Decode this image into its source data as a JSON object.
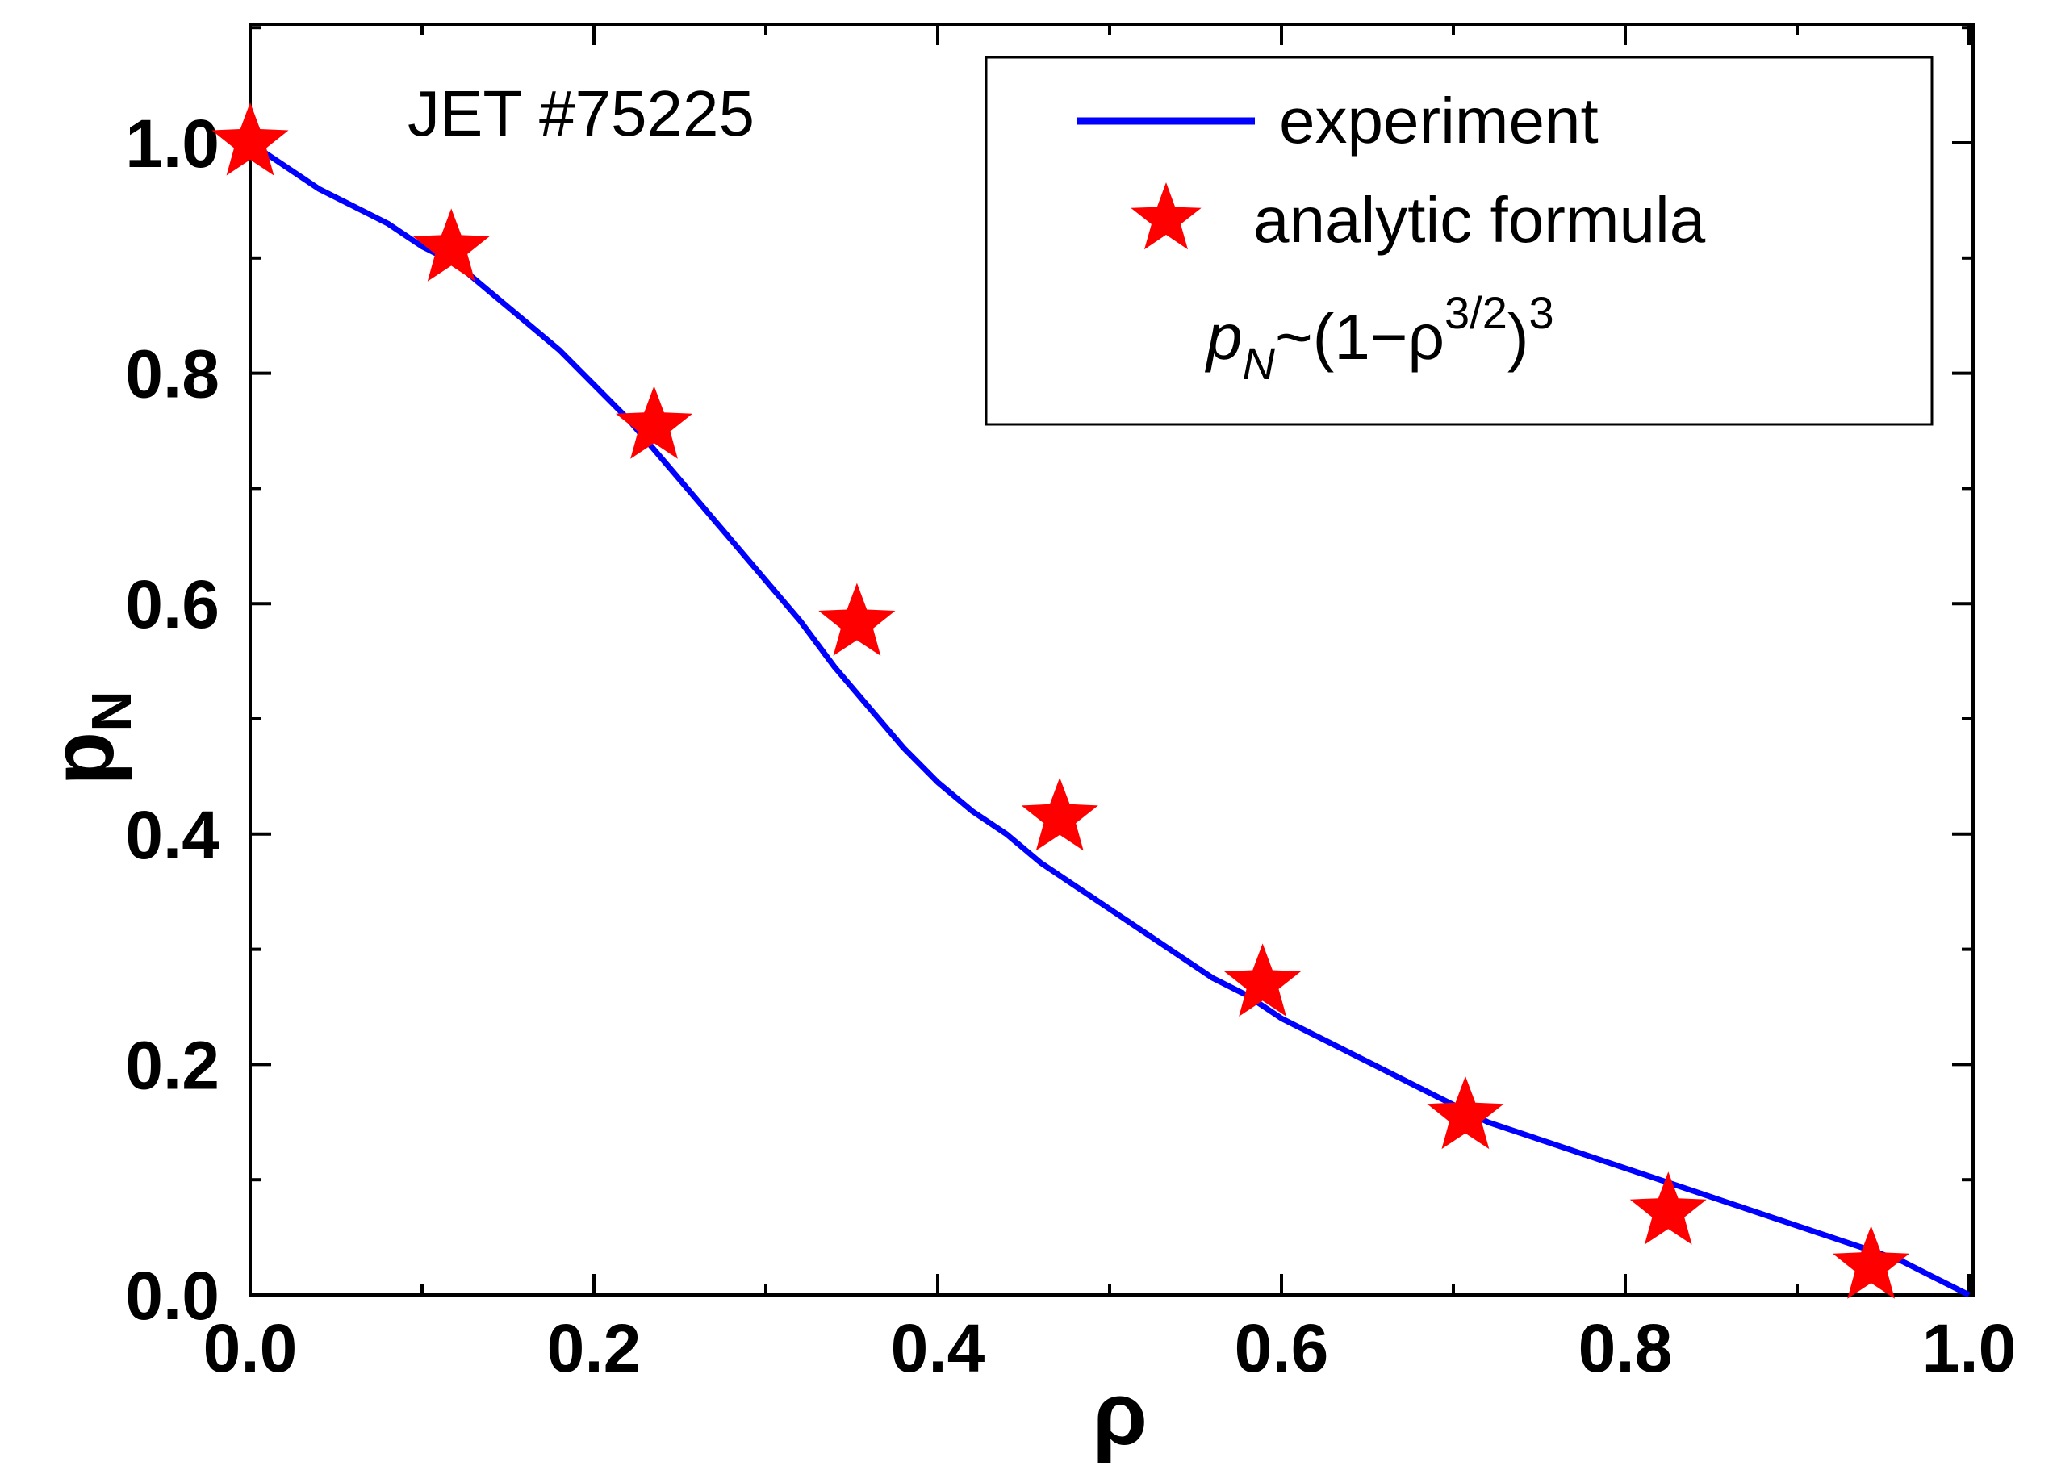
{
  "chart_data": {
    "type": "line",
    "title": "",
    "annotation": "JET #75225",
    "xlabel": "ρ",
    "ylabel": {
      "base": "p",
      "subscript": "N"
    },
    "xlim": [
      0.0,
      1.0
    ],
    "ylim": [
      0.0,
      1.1
    ],
    "xticks": [
      "0.0",
      "0.2",
      "0.4",
      "0.6",
      "0.8",
      "1.0"
    ],
    "yticks": [
      "0.0",
      "0.2",
      "0.4",
      "0.6",
      "0.8",
      "1.0"
    ],
    "grid": false,
    "legend_position": "top-right",
    "series": [
      {
        "name": "experiment",
        "kind": "line",
        "color": "#0000ff",
        "x": [
          0.0,
          0.02,
          0.04,
          0.06,
          0.08,
          0.1,
          0.12,
          0.14,
          0.16,
          0.18,
          0.2,
          0.22,
          0.24,
          0.26,
          0.28,
          0.3,
          0.32,
          0.34,
          0.36,
          0.38,
          0.4,
          0.42,
          0.44,
          0.46,
          0.48,
          0.5,
          0.52,
          0.54,
          0.56,
          0.58,
          0.6,
          0.62,
          0.64,
          0.66,
          0.68,
          0.7,
          0.72,
          0.74,
          0.76,
          0.78,
          0.8,
          0.82,
          0.84,
          0.86,
          0.88,
          0.9,
          0.92,
          0.94,
          0.96,
          0.98,
          1.0
        ],
        "y": [
          1.0,
          0.98,
          0.96,
          0.945,
          0.93,
          0.91,
          0.895,
          0.87,
          0.845,
          0.82,
          0.79,
          0.76,
          0.725,
          0.69,
          0.655,
          0.62,
          0.585,
          0.545,
          0.51,
          0.475,
          0.445,
          0.42,
          0.4,
          0.375,
          0.355,
          0.335,
          0.315,
          0.295,
          0.275,
          0.26,
          0.24,
          0.225,
          0.21,
          0.195,
          0.18,
          0.165,
          0.15,
          0.14,
          0.13,
          0.12,
          0.11,
          0.1,
          0.09,
          0.08,
          0.07,
          0.06,
          0.05,
          0.04,
          0.03,
          0.015,
          0.0
        ]
      },
      {
        "name": "analytic formula",
        "kind": "scatter",
        "marker": "star",
        "color": "#ff0000",
        "x": [
          0.0,
          0.117,
          0.235,
          0.353,
          0.471,
          0.589,
          0.707,
          0.825,
          0.943
        ],
        "y": [
          1.0,
          0.908,
          0.754,
          0.583,
          0.414,
          0.27,
          0.155,
          0.072,
          0.025
        ]
      }
    ],
    "legend_formula": {
      "p": "p",
      "sub": "N",
      "mid": "~(1−ρ",
      "sup1": "3/2",
      "close": ")",
      "sup2": "3"
    }
  }
}
